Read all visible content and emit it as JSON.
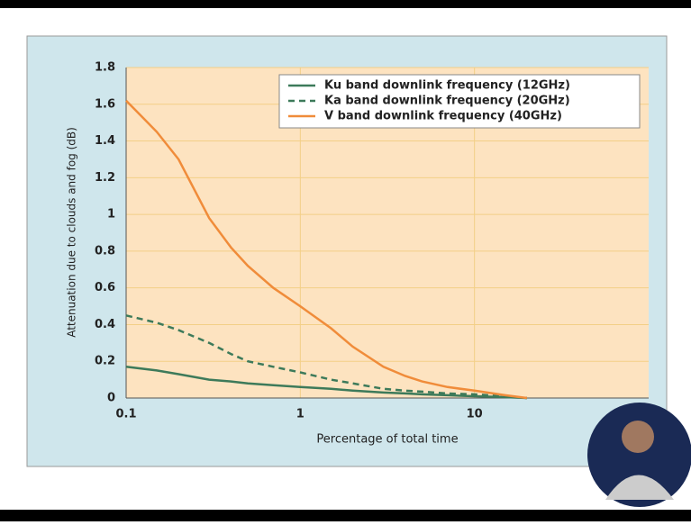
{
  "chart_data": {
    "type": "line",
    "x_label": "Percentage of total time",
    "y_label": "Attenuation due to clouds and fog (dB)",
    "x": [
      0.1,
      0.15,
      0.2,
      0.3,
      0.4,
      0.5,
      0.7,
      1,
      1.5,
      2,
      3,
      4,
      5,
      7,
      10,
      15,
      20
    ],
    "series": [
      {
        "name": "Ku band downlink frequency (12GHz)",
        "color": "#3d7a5a",
        "dash": "solid",
        "values": [
          0.17,
          0.15,
          0.13,
          0.1,
          0.09,
          0.08,
          0.07,
          0.06,
          0.05,
          0.04,
          0.03,
          0.025,
          0.02,
          0.015,
          0.01,
          0.005,
          0
        ]
      },
      {
        "name": "Ka band downlink frequency (20GHz)",
        "color": "#3d7a5a",
        "dash": "dashed",
        "values": [
          0.45,
          0.41,
          0.37,
          0.3,
          0.24,
          0.2,
          0.17,
          0.14,
          0.1,
          0.08,
          0.05,
          0.04,
          0.035,
          0.025,
          0.02,
          0.01,
          0
        ]
      },
      {
        "name": "V band downlink frequency (40GHz)",
        "color": "#f08c3a",
        "dash": "solid",
        "values": [
          1.62,
          1.45,
          1.3,
          0.98,
          0.82,
          0.72,
          0.6,
          0.5,
          0.38,
          0.28,
          0.17,
          0.12,
          0.09,
          0.06,
          0.04,
          0.015,
          0
        ]
      }
    ],
    "xscale": "log",
    "xlim": [
      0.1,
      100
    ],
    "xticks": [
      0.1,
      1,
      10
    ],
    "ylim": [
      0,
      1.8
    ],
    "yticks": [
      0,
      0.2,
      0.4,
      0.6,
      0.8,
      1,
      1.2,
      1.4,
      1.6,
      1.8
    ],
    "grid": true,
    "legend": "upper right"
  }
}
